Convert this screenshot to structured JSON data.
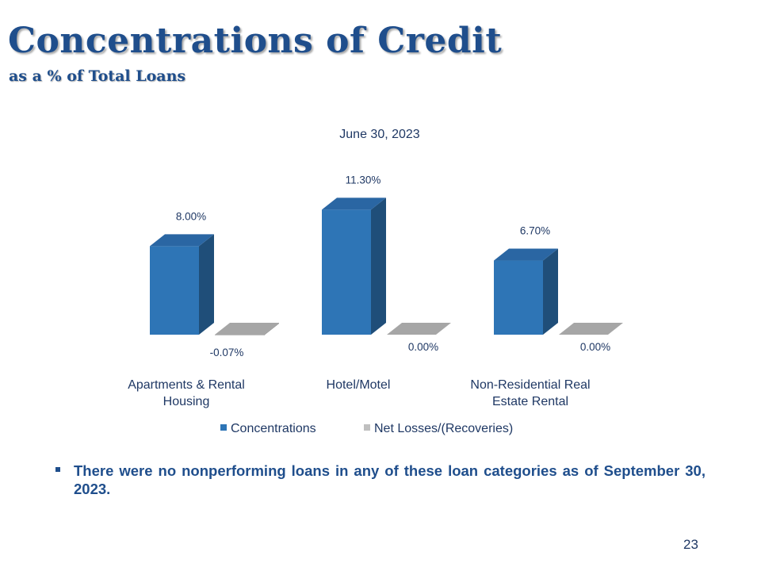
{
  "slide": {
    "title": "Concentrations of Credit",
    "subtitle": "as a % of Total Loans",
    "bullet": "There were no nonperforming loans in any of these loan categories as of September 30, 2023.",
    "page_number": "23"
  },
  "chart_data": {
    "type": "bar",
    "title": "June 30, 2023",
    "categories": [
      [
        "Apartments & Rental",
        "Housing"
      ],
      [
        "Hotel/Motel"
      ],
      [
        "Non-Residential Real",
        "Estate Rental"
      ]
    ],
    "series": [
      {
        "name": "Concentrations",
        "values": [
          8.0,
          11.3,
          6.7
        ],
        "labels": [
          "8.00%",
          "11.30%",
          "6.70%"
        ],
        "color": "#2e75b6",
        "side_color": "#1f4e79",
        "top_color": "#2a66a3"
      },
      {
        "name": "Net Losses/(Recoveries)",
        "values": [
          -0.07,
          0.0,
          0.0
        ],
        "labels": [
          "-0.07%",
          "0.00%",
          "0.00%"
        ],
        "color": "#bfbfbf",
        "side_color": "#8c8c8c",
        "top_color": "#a6a6a6"
      }
    ],
    "legend_position": "bottom",
    "style": "3d-clustered-column",
    "gridlines": false
  }
}
